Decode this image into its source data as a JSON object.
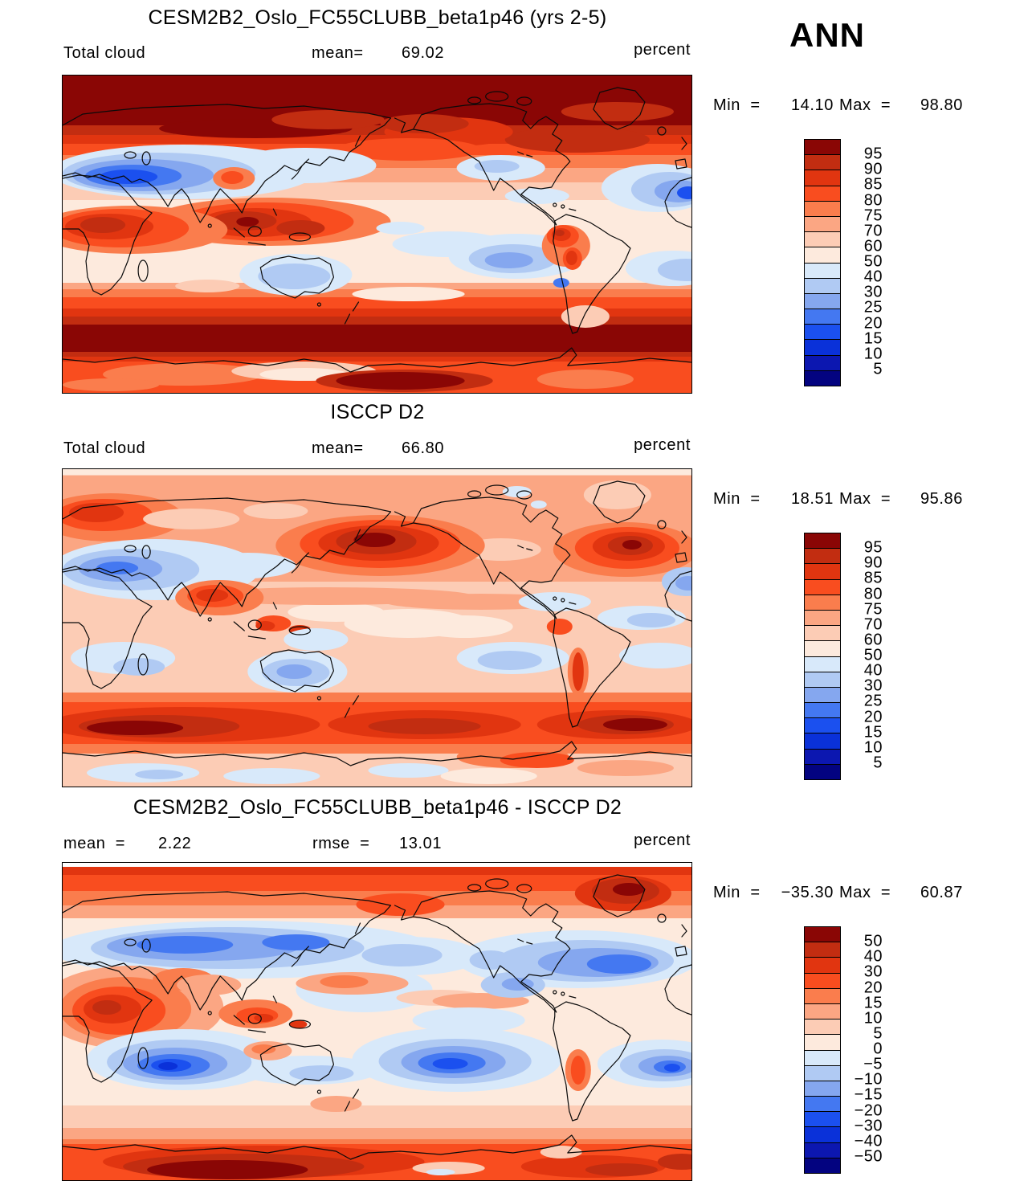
{
  "season_label": "ANN",
  "palette": [
    "#8a0605",
    "#c22d11",
    "#e13510",
    "#f94d1f",
    "#fa7d4d",
    "#fba683",
    "#fcccb5",
    "#fdeadd",
    "#d8e9fa",
    "#b0caf3",
    "#85a7ef",
    "#4478f1",
    "#1b50ef",
    "#0a31d9",
    "#0c17b0",
    "#030380"
  ],
  "panels": [
    {
      "id": "model",
      "title": "CESM2B2_Oslo_FC55CLUBB_beta1p46 (yrs 2-5)",
      "variable": "Total cloud",
      "mean_label": "mean=",
      "mean_value": "69.02",
      "units": "percent",
      "min_label": "Min  =",
      "min_value": "14.10",
      "max_label": "Max  =",
      "max_value": "98.80",
      "colorbar_labels": [
        "95",
        "90",
        "85",
        "80",
        "75",
        "70",
        "60",
        "50",
        "40",
        "30",
        "25",
        "20",
        "15",
        "10",
        "5"
      ]
    },
    {
      "id": "obs",
      "title": "ISCCP D2",
      "variable": "Total cloud",
      "mean_label": "mean=",
      "mean_value": "66.80",
      "units": "percent",
      "min_label": "Min  =",
      "min_value": "18.51",
      "max_label": "Max  =",
      "max_value": "95.86",
      "colorbar_labels": [
        "95",
        "90",
        "85",
        "80",
        "75",
        "70",
        "60",
        "50",
        "40",
        "30",
        "25",
        "20",
        "15",
        "10",
        "5"
      ]
    },
    {
      "id": "diff",
      "title": "CESM2B2_Oslo_FC55CLUBB_beta1p46 - ISCCP D2",
      "mean_label": "mean  =",
      "mean_value": "2.22",
      "rmse_label": "rmse  =",
      "rmse_value": "13.01",
      "units": "percent",
      "min_label": "Min  =",
      "min_value": "−35.30",
      "max_label": "Max  =",
      "max_value": "60.87",
      "colorbar_labels": [
        "50",
        "40",
        "30",
        "20",
        "15",
        "10",
        "5",
        "0",
        "−5",
        "−10",
        "−15",
        "−20",
        "−30",
        "−40",
        "−50"
      ]
    }
  ],
  "chart_data": [
    {
      "type": "heatmap",
      "subtype": "filled-contour-global-map",
      "title": "CESM2B2_Oslo_FC55CLUBB_beta1p46 (yrs 2-5)",
      "variable": "Total cloud",
      "units": "percent",
      "season": "ANN",
      "projection": "equirectangular, lon 0-360E, lat 90N-90S",
      "stats": {
        "mean": 69.02,
        "min": 14.1,
        "max": 98.8
      },
      "contour_levels": [
        5,
        10,
        15,
        20,
        25,
        30,
        40,
        50,
        60,
        70,
        75,
        80,
        85,
        90,
        95
      ],
      "legend_position": "right",
      "notes": "High cloud (dark red >95) over Arctic and 50-70S storm track; low cloud (blue 20-40) over Sahara/Middle East, Australia, subtropical SE Pacific and subtropical N Atlantic; pale 50-70 band in tropics"
    },
    {
      "type": "heatmap",
      "subtype": "filled-contour-global-map",
      "title": "ISCCP D2",
      "variable": "Total cloud",
      "units": "percent",
      "season": "ANN",
      "projection": "equirectangular, lon 0-360E, lat 90N-90S",
      "stats": {
        "mean": 66.8,
        "min": 18.51,
        "max": 95.86
      },
      "contour_levels": [
        5,
        10,
        15,
        20,
        25,
        30,
        40,
        50,
        60,
        70,
        75,
        80,
        85,
        90,
        95
      ],
      "legend_position": "right",
      "notes": "Salmon 70-75 over most NH; dark red >90 cores in N Pacific and N Atlantic and 50-65S band; blue 30-45 over Sahara/Arabia and Australia; pale blue over Antarctica"
    },
    {
      "type": "heatmap",
      "subtype": "filled-contour-global-map-difference",
      "title": "CESM2B2_Oslo_FC55CLUBB_beta1p46 - ISCCP D2",
      "variable": "Total cloud difference",
      "units": "percent",
      "season": "ANN",
      "projection": "equirectangular, lon 0-360E, lat 90N-90S",
      "stats": {
        "mean": 2.22,
        "rmse": 13.01,
        "min": -35.3,
        "max": 60.87
      },
      "contour_levels": [
        -50,
        -40,
        -30,
        -20,
        -15,
        -10,
        -5,
        0,
        5,
        10,
        15,
        20,
        30,
        40,
        50
      ],
      "legend_position": "right",
      "notes": "Positive (red) over Arctic, Africa, Antarctica interior; negative (blue) bands over NH midlatitude land/ocean and SH subtropical oceans (S Indian, SE Pacific, S Atlantic)"
    }
  ]
}
